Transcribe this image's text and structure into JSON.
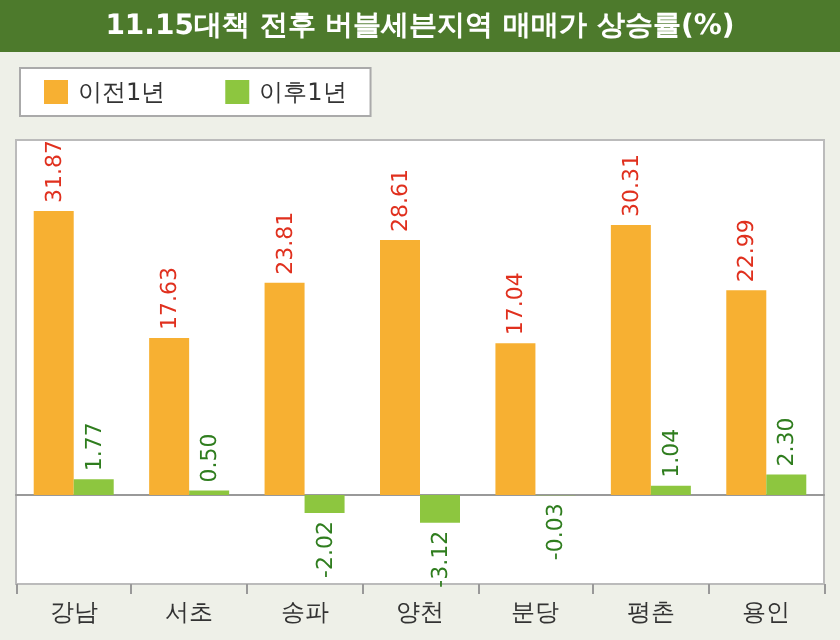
{
  "chart_data": {
    "type": "bar",
    "title": "11.15대책 전후 버블세븐지역 매매가 상승률(%)",
    "categories": [
      "강남",
      "서초",
      "송파",
      "양천",
      "분당",
      "평촌",
      "용인"
    ],
    "series": [
      {
        "name": "이전1년",
        "color": "#f7b032",
        "values": [
          31.87,
          17.63,
          23.81,
          28.61,
          17.04,
          30.31,
          22.99
        ],
        "value_labels": [
          "31.87",
          "17.63",
          "23.81",
          "28.61",
          "17.04",
          "30.31",
          "22.99"
        ]
      },
      {
        "name": "이후1년",
        "color": "#8dc63f",
        "values": [
          1.77,
          0.5,
          -2.02,
          -3.12,
          -0.03,
          1.04,
          2.3
        ],
        "value_labels": [
          "1.77",
          "0.50",
          "-2.02",
          "-3.12",
          "-0.03",
          "1.04",
          "2.30"
        ]
      }
    ],
    "legend": "top left"
  }
}
